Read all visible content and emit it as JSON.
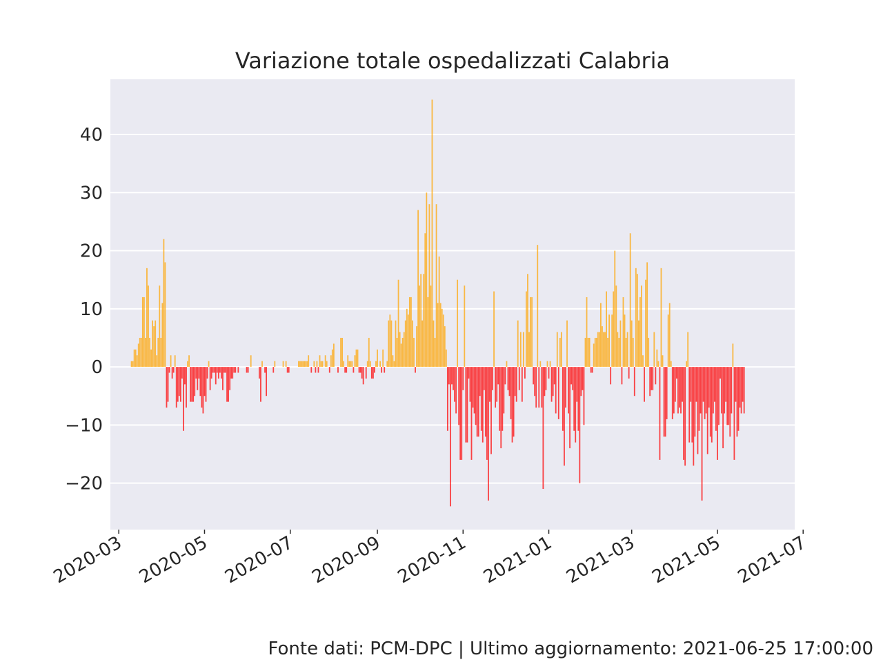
{
  "chart_data": {
    "type": "bar",
    "title": "Variazione totale ospedalizzati Calabria",
    "xlabel": "",
    "ylabel": "",
    "ylim": [
      -28,
      49.5
    ],
    "yticks": [
      -20,
      -10,
      0,
      10,
      20,
      30,
      40
    ],
    "ytick_labels": [
      "−20",
      "−10",
      "0",
      "10",
      "20",
      "30",
      "40"
    ],
    "xticks": [
      "2020-03",
      "2020-05",
      "2020-07",
      "2020-09",
      "2020-11",
      "2021-01",
      "2021-03",
      "2021-05",
      "2021-07"
    ],
    "x_start": "2020-02-24",
    "x_end": "2021-06-25",
    "grid": true,
    "legend": "none",
    "colors": {
      "positive": "#ffa500",
      "negative": "#ff0000",
      "background": "#eaeaf2",
      "grid": "#ffffff"
    },
    "series": [
      {
        "name": "",
        "start_date": "2020-03-10",
        "values": [
          1,
          1,
          3,
          3,
          2,
          4,
          5,
          5,
          12,
          12,
          5,
          17,
          14,
          5,
          3,
          8,
          7,
          8,
          2,
          5,
          14,
          5,
          11,
          22,
          18,
          -7,
          -6,
          -1,
          2,
          -2,
          -1,
          2,
          -7,
          -6,
          -5,
          -6,
          -2,
          -11,
          -3,
          -7,
          1,
          2,
          -6,
          -6,
          -6,
          -5,
          -2,
          -4,
          -2,
          -5,
          -7,
          -8,
          -5,
          -6,
          -2,
          1,
          -4,
          -2,
          -1,
          -1,
          -3,
          -1,
          -2,
          -1,
          -2,
          -4,
          -1,
          -1,
          -6,
          -6,
          -4,
          -2,
          -2,
          -1,
          -1,
          0,
          -1,
          0,
          0,
          0,
          0,
          0,
          -1,
          -1,
          0,
          2,
          0,
          0,
          0,
          0,
          0,
          -2,
          -6,
          1,
          0,
          -1,
          -5,
          0,
          0,
          0,
          0,
          -1,
          1,
          0,
          0,
          0,
          0,
          0,
          1,
          0,
          1,
          -1,
          -1,
          0,
          0,
          0,
          0,
          0,
          0,
          1,
          1,
          1,
          1,
          1,
          1,
          1,
          2,
          0,
          -1,
          0,
          1,
          -1,
          1,
          -1,
          2,
          1,
          1,
          0,
          2,
          1,
          0,
          -1,
          2,
          3,
          4,
          0,
          0,
          -1,
          0,
          5,
          5,
          1,
          -1,
          -1,
          2,
          1,
          1,
          1,
          -1,
          2,
          3,
          3,
          -1,
          -1,
          -2,
          -3,
          0,
          -2,
          1,
          5,
          1,
          -2,
          -2,
          -1,
          1,
          3,
          0,
          1,
          -1,
          3,
          -1,
          0,
          1,
          8,
          9,
          8,
          2,
          1,
          8,
          5,
          15,
          6,
          4,
          5,
          6,
          8,
          10,
          9,
          12,
          12,
          8,
          5,
          -1,
          7,
          27,
          14,
          16,
          8,
          16,
          23,
          30,
          12,
          28,
          14,
          46,
          8,
          5,
          28,
          11,
          19,
          11,
          10,
          9,
          7,
          3,
          -11,
          -3,
          -24,
          -3,
          -4,
          -6,
          -8,
          15,
          -10,
          -16,
          -16,
          -4,
          14,
          -13,
          -13,
          -2,
          -6,
          -16,
          -7,
          -8,
          -10,
          -12,
          -12,
          -5,
          -11,
          -13,
          -4,
          -12,
          -16,
          -23,
          -6,
          -15,
          -4,
          13,
          -7,
          -6,
          -3,
          -11,
          -14,
          -11,
          -8,
          -3,
          1,
          -4,
          -5,
          -9,
          -13,
          -12,
          -5,
          -6,
          8,
          -4,
          6,
          -6,
          6,
          -2,
          13,
          16,
          6,
          12,
          12,
          -3,
          -5,
          -7,
          21,
          -7,
          1,
          -7,
          -21,
          -5,
          -4,
          1,
          -2,
          1,
          -6,
          -5,
          -3,
          -8,
          6,
          -9,
          5,
          6,
          -11,
          -17,
          -7,
          8,
          -8,
          -14,
          -3,
          -4,
          -11,
          -13,
          -6,
          -11,
          -20,
          -5,
          -4,
          -10,
          5,
          12,
          5,
          5,
          -1,
          -1,
          4,
          5,
          5,
          6,
          6,
          11,
          7,
          6,
          6,
          13,
          5,
          9,
          -3,
          9,
          13,
          20,
          14,
          6,
          5,
          8,
          -3,
          12,
          9,
          5,
          6,
          -2,
          23,
          8,
          5,
          -5,
          17,
          16,
          8,
          12,
          14,
          2,
          -6,
          15,
          18,
          5,
          -5,
          -4,
          -4,
          6,
          -3,
          3,
          1,
          -16,
          17,
          2,
          -12,
          -12,
          -9,
          9,
          11,
          1,
          -9,
          -8,
          -6,
          -2,
          -8,
          -7,
          -8,
          -6,
          -16,
          -17,
          1,
          6,
          -13,
          -6,
          -13,
          -17,
          -12,
          -6,
          -15,
          -11,
          -8,
          -23,
          -6,
          -9,
          -8,
          -15,
          -7,
          -12,
          -13,
          -8,
          -6,
          -11,
          -16,
          -10,
          -2,
          -8,
          -14,
          -8,
          -6,
          -10,
          -10,
          -12,
          -8,
          4,
          -16,
          -6,
          -12,
          -11,
          -7,
          -8,
          -6,
          -8
        ]
      }
    ]
  },
  "footer": {
    "source_text": "Fonte dati: PCM-DPC | Ultimo aggiornamento: 2021-06-25 17:00:00"
  }
}
